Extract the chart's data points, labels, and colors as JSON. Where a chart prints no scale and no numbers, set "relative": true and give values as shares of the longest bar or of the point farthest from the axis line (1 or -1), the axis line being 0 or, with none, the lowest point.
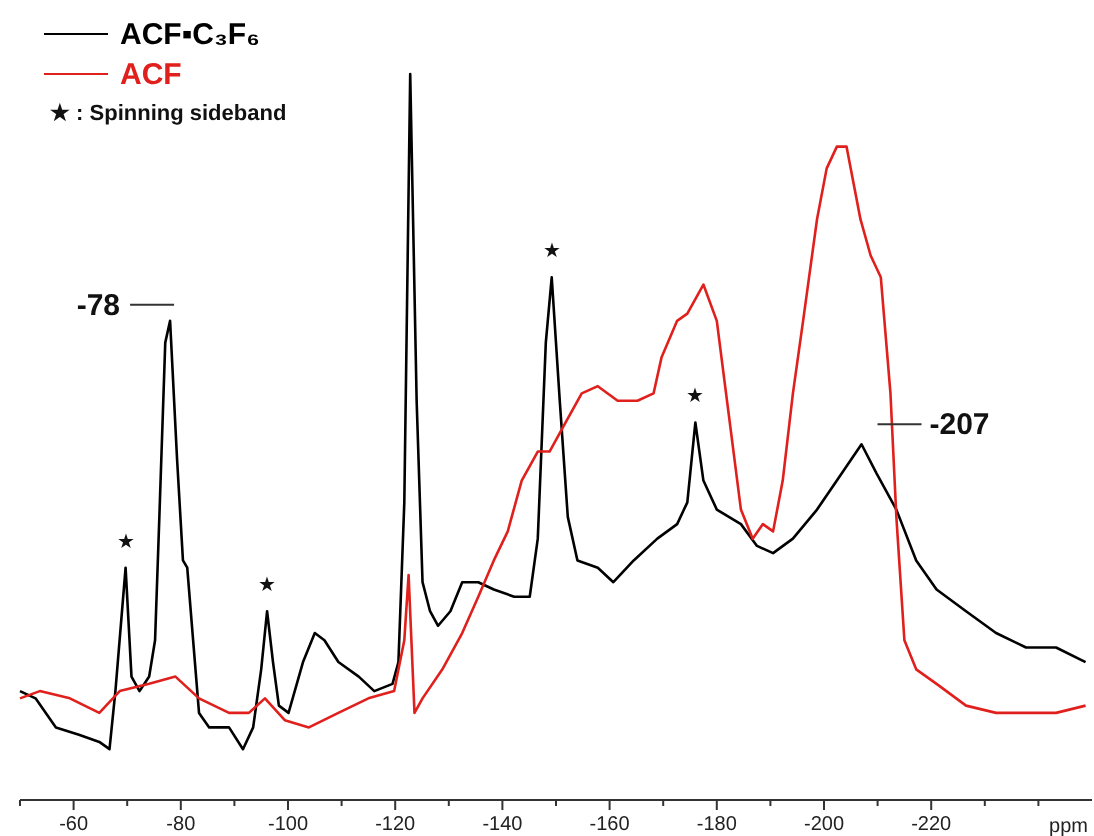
{
  "chart_data": {
    "type": "line",
    "relative": true,
    "xlabel": "ppm",
    "xlim": [
      -50,
      -250
    ],
    "xticks": [
      {
        "value": -50,
        "label": null
      },
      -60,
      {
        "value": -70,
        "label": null
      },
      -80,
      {
        "value": -90,
        "label": null
      },
      -100,
      {
        "value": -110,
        "label": null
      },
      -120,
      {
        "value": -130,
        "label": null
      },
      -140,
      {
        "value": -150,
        "label": null
      },
      -160,
      {
        "value": -170,
        "label": null
      },
      -180,
      {
        "value": -190,
        "label": null
      },
      -200,
      {
        "value": -210,
        "label": null
      },
      -220,
      {
        "value": -230,
        "label": null
      },
      {
        "value": -240,
        "label": null
      }
    ],
    "legend": "top left",
    "marker": "none",
    "line_style": "solid",
    "grid": false,
    "tick_labels": "x",
    "series": [
      {
        "name": "ACF▪C₃F₆",
        "color": "#000000",
        "x": [
          -50,
          -52.9,
          -56.7,
          -61,
          -64.8,
          -66.7,
          -67.8,
          -69.7,
          -70.8,
          -72.3,
          -74.1,
          -75.2,
          -76,
          -77.1,
          -78,
          -79.3,
          -80.4,
          -81.2,
          -82.3,
          -83.4,
          -85.3,
          -89,
          -91.6,
          -93.5,
          -95,
          -96.1,
          -97.2,
          -98.3,
          -100.1,
          -102.8,
          -105,
          -106.8,
          -109.4,
          -113.2,
          -116.1,
          -119.5,
          -120.6,
          -121.7,
          -122.8,
          -124,
          -125.1,
          -126.5,
          -128,
          -130.3,
          -132.5,
          -135.5,
          -138.4,
          -142.2,
          -145.1,
          -146.6,
          -148.1,
          -149.2,
          -150.7,
          -152.2,
          -154,
          -157.8,
          -160.7,
          -164.5,
          -168.9,
          -172.6,
          -174.5,
          -176,
          -177.5,
          -180,
          -184.5,
          -187.5,
          -190.5,
          -194.2,
          -198.7,
          -202.4,
          -207,
          -209.8,
          -213.5,
          -217.2,
          -221,
          -226.5,
          -232.1,
          -237.7,
          -243.3,
          -248.8
        ],
        "values": [
          0.15,
          0.14,
          0.1,
          0.09,
          0.08,
          0.07,
          0.15,
          0.32,
          0.17,
          0.15,
          0.17,
          0.22,
          0.39,
          0.63,
          0.66,
          0.47,
          0.33,
          0.32,
          0.22,
          0.12,
          0.1,
          0.1,
          0.07,
          0.1,
          0.18,
          0.26,
          0.19,
          0.13,
          0.12,
          0.19,
          0.23,
          0.22,
          0.19,
          0.17,
          0.15,
          0.16,
          0.19,
          0.41,
          1,
          0.55,
          0.3,
          0.26,
          0.24,
          0.26,
          0.3,
          0.3,
          0.29,
          0.28,
          0.28,
          0.36,
          0.63,
          0.72,
          0.55,
          0.39,
          0.33,
          0.32,
          0.3,
          0.33,
          0.36,
          0.38,
          0.41,
          0.52,
          0.44,
          0.4,
          0.38,
          0.35,
          0.34,
          0.36,
          0.4,
          0.44,
          0.49,
          0.45,
          0.4,
          0.33,
          0.29,
          0.26,
          0.23,
          0.21,
          0.21,
          0.19
        ]
      },
      {
        "name": "ACF",
        "color": "#e0201c",
        "x": [
          -50,
          -53.7,
          -59.3,
          -64.8,
          -68.6,
          -74.1,
          -79,
          -83.4,
          -89,
          -92.7,
          -95.7,
          -99.4,
          -103.9,
          -109.4,
          -115,
          -119.8,
          -121.7,
          -122.5,
          -123.6,
          -125.1,
          -128.8,
          -132.5,
          -135.5,
          -138.4,
          -141,
          -143.6,
          -146.6,
          -148.8,
          -151.8,
          -154.8,
          -157.8,
          -161.5,
          -165.2,
          -168.2,
          -169.7,
          -172.6,
          -174.5,
          -177.5,
          -180,
          -181.9,
          -184.5,
          -186.7,
          -188.6,
          -190.5,
          -192.3,
          -194.2,
          -196.1,
          -198.7,
          -200.5,
          -202.4,
          -204.2,
          -206.8,
          -208.7,
          -210.6,
          -212.4,
          -213.5,
          -215,
          -217.2,
          -221,
          -226.5,
          -232.1,
          -237.7,
          -243.3,
          -248.8
        ],
        "values": [
          0.14,
          0.15,
          0.14,
          0.12,
          0.15,
          0.16,
          0.17,
          0.14,
          0.12,
          0.12,
          0.14,
          0.11,
          0.1,
          0.12,
          0.14,
          0.15,
          0.22,
          0.31,
          0.12,
          0.14,
          0.18,
          0.23,
          0.28,
          0.33,
          0.37,
          0.44,
          0.48,
          0.48,
          0.52,
          0.56,
          0.57,
          0.55,
          0.55,
          0.56,
          0.61,
          0.66,
          0.67,
          0.71,
          0.66,
          0.55,
          0.4,
          0.36,
          0.38,
          0.37,
          0.44,
          0.56,
          0.66,
          0.8,
          0.87,
          0.9,
          0.9,
          0.8,
          0.75,
          0.72,
          0.56,
          0.39,
          0.22,
          0.18,
          0.16,
          0.13,
          0.12,
          0.12,
          0.12,
          0.13
        ]
      }
    ],
    "annotations": [
      "★ : Spinning sideband",
      {
        "text": "-78",
        "x": -78,
        "y": 0.66
      },
      {
        "text": "-207",
        "x": -207,
        "y": 0.49
      },
      {
        "text": "★",
        "x": -69.7,
        "y": 0.32
      },
      {
        "text": "★",
        "x": -96.1,
        "y": 0.26
      },
      {
        "text": "★",
        "x": -149.2,
        "y": 0.72
      },
      {
        "text": "★",
        "x": -176,
        "y": 0.52
      }
    ]
  }
}
